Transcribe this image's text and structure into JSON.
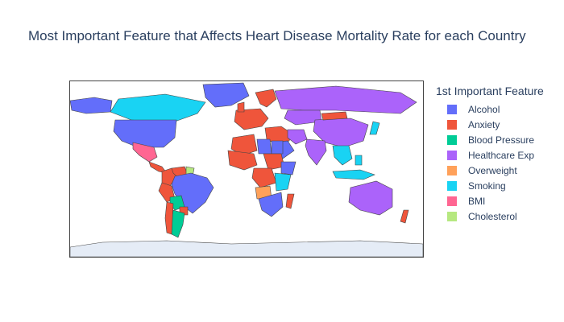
{
  "title": "Most Important Feature that Affects Heart Disease Mortality Rate for each Country",
  "legend": {
    "title": "1st Important Feature",
    "items": [
      {
        "label": "Alcohol",
        "color": "#636efa"
      },
      {
        "label": "Anxiety",
        "color": "#ef553b"
      },
      {
        "label": "Blood Pressure",
        "color": "#00cc96"
      },
      {
        "label": "Healthcare Exp",
        "color": "#ab63fa"
      },
      {
        "label": "Overweight",
        "color": "#ffa15a"
      },
      {
        "label": "Smoking",
        "color": "#19d3f3"
      },
      {
        "label": "BMI",
        "color": "#ff6692"
      },
      {
        "label": "Cholesterol",
        "color": "#b6e880"
      }
    ]
  },
  "map": {
    "projection": "equirectangular",
    "antarctica_color": "#e5ecf6",
    "regions": [
      {
        "name": "Canada",
        "category": "Smoking"
      },
      {
        "name": "Alaska",
        "category": "Alcohol"
      },
      {
        "name": "Greenland",
        "category": "Alcohol"
      },
      {
        "name": "United States",
        "category": "Alcohol"
      },
      {
        "name": "Mexico",
        "category": "BMI"
      },
      {
        "name": "Central America",
        "category": "Anxiety"
      },
      {
        "name": "Colombia",
        "category": "Anxiety"
      },
      {
        "name": "Venezuela",
        "category": "Anxiety"
      },
      {
        "name": "Guyana",
        "category": "Cholesterol"
      },
      {
        "name": "Brazil",
        "category": "Alcohol"
      },
      {
        "name": "Peru",
        "category": "Anxiety"
      },
      {
        "name": "Bolivia",
        "category": "Blood Pressure"
      },
      {
        "name": "Paraguay",
        "category": "Anxiety"
      },
      {
        "name": "Argentina",
        "category": "Blood Pressure"
      },
      {
        "name": "Chile",
        "category": "Anxiety"
      },
      {
        "name": "Western Europe",
        "category": "Anxiety"
      },
      {
        "name": "Scandinavia",
        "category": "Anxiety"
      },
      {
        "name": "UK",
        "category": "Anxiety"
      },
      {
        "name": "Russia",
        "category": "Healthcare Exp"
      },
      {
        "name": "Kazakhstan",
        "category": "Healthcare Exp"
      },
      {
        "name": "China",
        "category": "Healthcare Exp"
      },
      {
        "name": "Mongolia",
        "category": "Anxiety"
      },
      {
        "name": "India",
        "category": "Healthcare Exp"
      },
      {
        "name": "Middle East",
        "category": "Anxiety"
      },
      {
        "name": "Saudi Arabia",
        "category": "Alcohol"
      },
      {
        "name": "Iran",
        "category": "Healthcare Exp"
      },
      {
        "name": "Southeast Asia",
        "category": "Smoking"
      },
      {
        "name": "Indonesia",
        "category": "Smoking"
      },
      {
        "name": "Philippines",
        "category": "Smoking"
      },
      {
        "name": "Japan",
        "category": "Smoking"
      },
      {
        "name": "Australia",
        "category": "Healthcare Exp"
      },
      {
        "name": "New Zealand",
        "category": "Anxiety"
      },
      {
        "name": "Algeria",
        "category": "Anxiety"
      },
      {
        "name": "Libya",
        "category": "Alcohol"
      },
      {
        "name": "Egypt",
        "category": "Alcohol"
      },
      {
        "name": "West Africa",
        "category": "Anxiety"
      },
      {
        "name": "Sudan",
        "category": "Anxiety"
      },
      {
        "name": "Ethiopia",
        "category": "Alcohol"
      },
      {
        "name": "Congo",
        "category": "Anxiety"
      },
      {
        "name": "East Africa",
        "category": "Smoking"
      },
      {
        "name": "Angola",
        "category": "Overweight"
      },
      {
        "name": "Southern Africa",
        "category": "Alcohol"
      },
      {
        "name": "Madagascar",
        "category": "Anxiety"
      },
      {
        "name": "Antarctica",
        "category": ""
      }
    ]
  }
}
